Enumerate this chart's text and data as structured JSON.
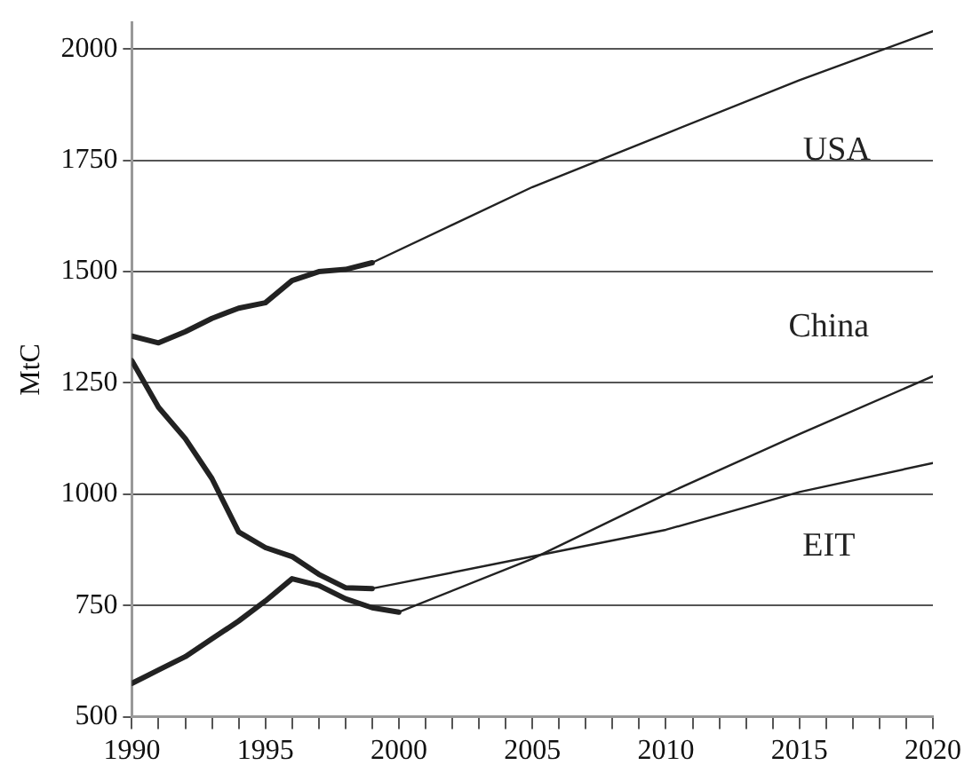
{
  "chart_data": {
    "type": "line",
    "ylabel": "MtC",
    "xlim": [
      1990,
      2020
    ],
    "xticks": [
      1990,
      {
        "value": 1991,
        "label": null
      },
      {
        "value": 1992,
        "label": null
      },
      {
        "value": 1993,
        "label": null
      },
      {
        "value": 1994,
        "label": null
      },
      1995,
      {
        "value": 1996,
        "label": null
      },
      {
        "value": 1997,
        "label": null
      },
      {
        "value": 1998,
        "label": null
      },
      {
        "value": 1999,
        "label": null
      },
      2000,
      {
        "value": 2001,
        "label": null
      },
      {
        "value": 2002,
        "label": null
      },
      {
        "value": 2003,
        "label": null
      },
      {
        "value": 2004,
        "label": null
      },
      2005,
      {
        "value": 2006,
        "label": null
      },
      {
        "value": 2007,
        "label": null
      },
      {
        "value": 2008,
        "label": null
      },
      {
        "value": 2009,
        "label": null
      },
      2010,
      {
        "value": 2011,
        "label": null
      },
      {
        "value": 2012,
        "label": null
      },
      {
        "value": 2013,
        "label": null
      },
      {
        "value": 2014,
        "label": null
      },
      2015,
      {
        "value": 2016,
        "label": null
      },
      {
        "value": 2017,
        "label": null
      },
      {
        "value": 2018,
        "label": null
      },
      {
        "value": 2019,
        "label": null
      },
      2020
    ],
    "ylim": [
      500,
      2060
    ],
    "yticks": [
      500,
      750,
      1000,
      1250,
      1500,
      1750,
      2000
    ],
    "grid": "y",
    "legend": false,
    "marker": "none",
    "line_style": "solid",
    "series": [
      {
        "color": "#222222",
        "x": [
          1990,
          1991,
          1992,
          1993,
          1994,
          1995,
          1996,
          1997,
          1998,
          1999
        ],
        "values": [
          1355,
          1340,
          1365,
          1395,
          1418,
          1430,
          1480,
          1500,
          1505,
          1520
        ]
      },
      {
        "color": "#222222",
        "x": [
          1999,
          2005,
          2010,
          2015,
          2020
        ],
        "values": [
          1520,
          1690,
          1810,
          1930,
          2040
        ]
      },
      {
        "color": "#222222",
        "x": [
          1990,
          1991,
          1992,
          1993,
          1994,
          1995,
          1996,
          1997,
          1998,
          1999,
          2000
        ],
        "values": [
          575,
          605,
          635,
          675,
          715,
          760,
          810,
          795,
          765,
          745,
          735
        ]
      },
      {
        "color": "#222222",
        "x": [
          2000,
          2005,
          2010,
          2015,
          2020
        ],
        "values": [
          735,
          855,
          1000,
          1135,
          1265
        ]
      },
      {
        "color": "#222222",
        "x": [
          1990,
          1991,
          1992,
          1993,
          1994,
          1995,
          1996,
          1997,
          1998,
          1999
        ],
        "values": [
          1300,
          1195,
          1125,
          1035,
          915,
          880,
          860,
          820,
          790,
          788
        ]
      },
      {
        "color": "#222222",
        "x": [
          1999,
          2005,
          2010,
          2015,
          2020
        ],
        "values": [
          788,
          860,
          920,
          1005,
          1070
        ]
      }
    ],
    "annotations": [
      "USA",
      "China",
      "EIT"
    ]
  }
}
